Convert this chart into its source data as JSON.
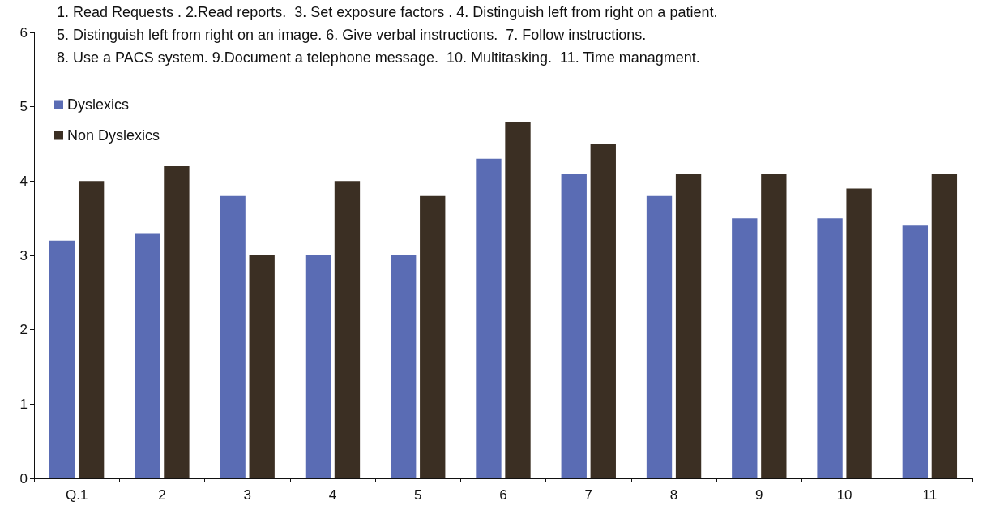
{
  "chart_data": {
    "type": "bar",
    "categories": [
      "Q.1",
      "2",
      "3",
      "4",
      "5",
      "6",
      "7",
      "8",
      "9",
      "10",
      "11"
    ],
    "series": [
      {
        "name": "Dyslexics",
        "color": "#5a6cb4",
        "values": [
          3.2,
          3.3,
          3.8,
          3.0,
          3.0,
          4.3,
          4.1,
          3.8,
          3.5,
          3.5,
          3.4
        ]
      },
      {
        "name": "Non Dyslexics",
        "color": "#3b2f23",
        "values": [
          4.0,
          4.2,
          3.0,
          4.0,
          3.8,
          4.8,
          4.5,
          4.1,
          4.1,
          3.9,
          4.1
        ]
      }
    ],
    "ylim": [
      0,
      6
    ],
    "yticks": [
      0,
      1,
      2,
      3,
      4,
      5,
      6
    ],
    "grid": false,
    "legend": "top left",
    "annotations": [
      "1. Read Requests . 2.Read reports.  3. Set exposure factors . 4. Distinguish left from right on a patient.",
      "5. Distinguish left from right on an image. 6. Give verbal instructions.  7. Follow instructions.",
      "8. Use a PACS system. 9.Document a telephone message.  10. Multitasking.  11. Time managment."
    ]
  }
}
